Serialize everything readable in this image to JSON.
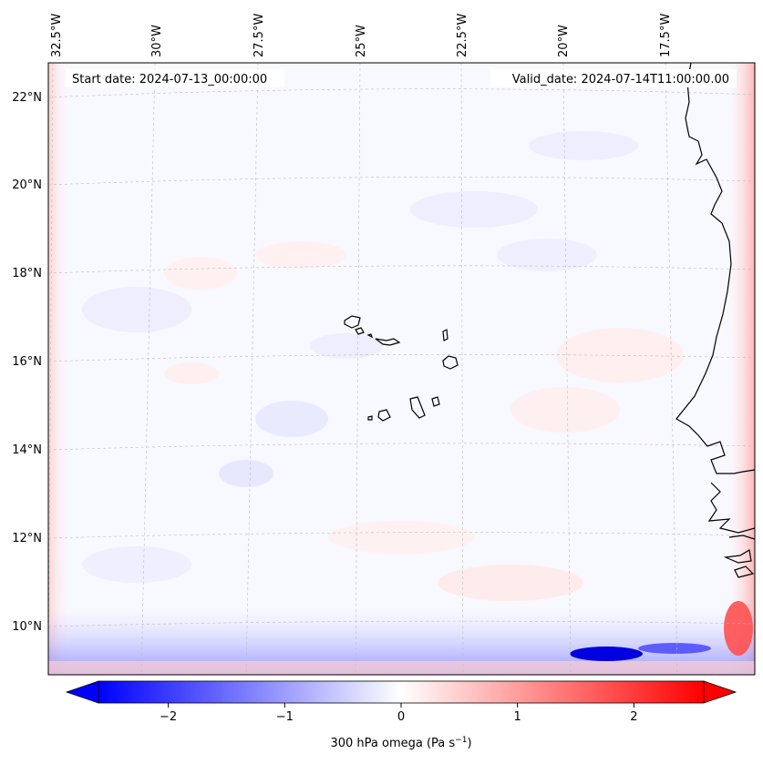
{
  "annotations": {
    "start_date": "Start date: 2024-07-13_00:00:00",
    "valid_date": "Valid_date: 2024-07-14T11:00:00.00"
  },
  "longitude_labels": [
    "32.5°W",
    "30°W",
    "27.5°W",
    "25°W",
    "22.5°W",
    "20°W",
    "17.5°W"
  ],
  "latitude_labels": [
    "22°N",
    "20°N",
    "18°N",
    "16°N",
    "14°N",
    "12°N",
    "10°N"
  ],
  "colorbar": {
    "label": "300 hPa omega (Pa s",
    "label_exponent": "−1",
    "label_close": ")",
    "ticks": [
      "−2",
      "−1",
      "0",
      "1",
      "2"
    ],
    "tick_values": [
      -2,
      -1,
      0,
      1,
      2
    ],
    "range": [
      -2.6,
      2.6
    ],
    "extend": "both",
    "colormap": "bwr",
    "colors": {
      "negative": "#0000ff",
      "zero": "#ffffff",
      "positive": "#ff0000"
    }
  },
  "chart_data": {
    "type": "heatmap",
    "variable": "300 hPa omega",
    "units": "Pa s^-1",
    "lon_ticks": [
      -32.5,
      -30,
      -27.5,
      -25,
      -22.5,
      -20,
      -17.5
    ],
    "lat_ticks": [
      22,
      20,
      18,
      16,
      14,
      12,
      10
    ],
    "grid": true,
    "features": [
      "coastlines",
      "Cape Verde islands",
      "West African coast"
    ]
  }
}
